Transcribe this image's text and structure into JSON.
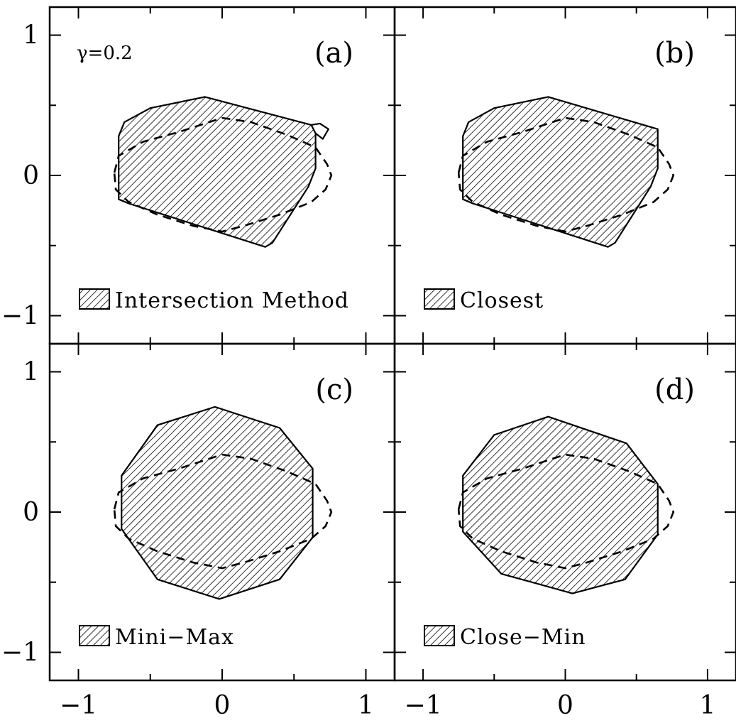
{
  "chart_data": {
    "type": "area",
    "layout": "2x2 panels, shared axes",
    "xlim": [
      -1.2,
      1.2
    ],
    "ylim": [
      -1.2,
      1.2
    ],
    "x_ticks": [
      -1,
      0,
      1
    ],
    "x_tick_labels": [
      "−1",
      "0",
      "1"
    ],
    "y_ticks": [
      -1,
      0,
      1
    ],
    "y_tick_labels": [
      "−1",
      "0",
      "1"
    ],
    "annotation": "γ=0.2",
    "colors": {
      "fill_hatch": "#000000",
      "background": "#ffffff"
    },
    "reference_curve": {
      "style": "dashed",
      "points": [
        [
          -0.75,
          0.02
        ],
        [
          -0.72,
          0.14
        ],
        [
          -0.55,
          0.24
        ],
        [
          -0.3,
          0.31
        ],
        [
          0.0,
          0.41
        ],
        [
          0.2,
          0.38
        ],
        [
          0.45,
          0.29
        ],
        [
          0.65,
          0.2
        ],
        [
          0.73,
          0.08
        ],
        [
          0.76,
          0.0
        ],
        [
          0.72,
          -0.1
        ],
        [
          0.62,
          -0.19
        ],
        [
          0.4,
          -0.28
        ],
        [
          0.15,
          -0.36
        ],
        [
          0.0,
          -0.4
        ],
        [
          -0.2,
          -0.36
        ],
        [
          -0.45,
          -0.28
        ],
        [
          -0.65,
          -0.19
        ],
        [
          -0.74,
          -0.1
        ],
        [
          -0.75,
          0.02
        ]
      ]
    },
    "panels": [
      {
        "label": "(a)",
        "legend": "Intersection Method",
        "show_gamma": true,
        "region": [
          [
            -0.72,
            0.28
          ],
          [
            -0.68,
            0.38
          ],
          [
            -0.5,
            0.48
          ],
          [
            -0.12,
            0.56
          ],
          [
            0.62,
            0.36
          ],
          [
            0.65,
            0.3
          ],
          [
            0.65,
            0.05
          ],
          [
            0.6,
            -0.08
          ],
          [
            0.35,
            -0.48
          ],
          [
            0.3,
            -0.51
          ],
          [
            -0.65,
            -0.2
          ],
          [
            -0.72,
            -0.17
          ]
        ],
        "arrow": [
          [
            0.62,
            0.36
          ],
          [
            0.68,
            0.37
          ],
          [
            0.74,
            0.33
          ],
          [
            0.7,
            0.26
          ],
          [
            0.65,
            0.3
          ]
        ]
      },
      {
        "label": "(b)",
        "legend": "Closest",
        "show_gamma": false,
        "region": [
          [
            -0.72,
            0.28
          ],
          [
            -0.68,
            0.38
          ],
          [
            -0.5,
            0.48
          ],
          [
            -0.12,
            0.56
          ],
          [
            0.65,
            0.33
          ],
          [
            0.65,
            0.05
          ],
          [
            0.6,
            -0.08
          ],
          [
            0.35,
            -0.48
          ],
          [
            0.3,
            -0.51
          ],
          [
            -0.65,
            -0.2
          ],
          [
            -0.72,
            -0.17
          ]
        ],
        "arrow": null
      },
      {
        "label": "(c)",
        "legend": "Mini−Max",
        "show_gamma": false,
        "region": [
          [
            -0.7,
            0.26
          ],
          [
            -0.45,
            0.62
          ],
          [
            -0.05,
            0.75
          ],
          [
            0.4,
            0.6
          ],
          [
            0.63,
            0.31
          ],
          [
            0.63,
            -0.18
          ],
          [
            0.4,
            -0.48
          ],
          [
            -0.02,
            -0.62
          ],
          [
            -0.45,
            -0.48
          ],
          [
            -0.7,
            -0.12
          ]
        ],
        "arrow": null
      },
      {
        "label": "(d)",
        "legend": "Close−Min",
        "show_gamma": false,
        "region": [
          [
            -0.72,
            0.26
          ],
          [
            -0.5,
            0.55
          ],
          [
            -0.12,
            0.68
          ],
          [
            0.43,
            0.49
          ],
          [
            0.65,
            0.2
          ],
          [
            0.65,
            -0.16
          ],
          [
            0.42,
            -0.48
          ],
          [
            0.05,
            -0.58
          ],
          [
            -0.45,
            -0.44
          ],
          [
            -0.72,
            -0.14
          ]
        ],
        "arrow": null
      }
    ]
  }
}
